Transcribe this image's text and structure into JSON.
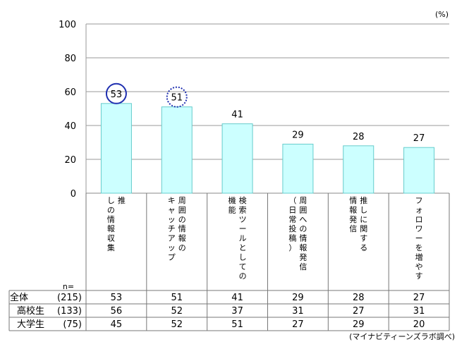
{
  "chart_data": {
    "type": "bar",
    "unit_label": "(%)",
    "ylim": [
      0,
      100
    ],
    "yticks": [
      0,
      20,
      40,
      60,
      80,
      100
    ],
    "grid": true,
    "bar_color": "#ccffff",
    "bar_stroke": "#66cccc",
    "highlight_solid_color": "#1f2fb0",
    "highlight_dotted_color": "#1f2fb0",
    "categories": [
      {
        "label": "推しの情報収集",
        "lines": [
          "推",
          "しの情報収集"
        ]
      },
      {
        "label": "周囲の情報のキャッチアップ",
        "lines": [
          "周囲の情報の",
          "キャッチアップ"
        ]
      },
      {
        "label": "検索ツールとしての機能",
        "lines": [
          "検索ツールとしての",
          "機能"
        ]
      },
      {
        "label": "周囲への情報発信（日常投稿）",
        "lines": [
          "周囲への情報発信",
          "（日常投稿）"
        ]
      },
      {
        "label": "推しに関する情報発信",
        "lines": [
          "推しに関する",
          "情報発信"
        ]
      },
      {
        "label": "フォロワーを増やす",
        "lines": [
          "フォロワーを増やす"
        ]
      }
    ],
    "values": [
      53,
      51,
      41,
      29,
      28,
      27
    ],
    "highlights": [
      {
        "index": 0,
        "style": "solid"
      },
      {
        "index": 1,
        "style": "dotted"
      }
    ]
  },
  "table": {
    "n_label": "n=",
    "rows": [
      {
        "label": "全体",
        "n": "(215)",
        "values": [
          "53",
          "51",
          "41",
          "29",
          "28",
          "27"
        ]
      },
      {
        "label": "高校生",
        "n": "(133)",
        "values": [
          "56",
          "52",
          "37",
          "31",
          "27",
          "31"
        ]
      },
      {
        "label": "大学生",
        "n": "(75)",
        "values": [
          "45",
          "52",
          "51",
          "27",
          "29",
          "20"
        ]
      }
    ]
  },
  "source": "(マイナビティーンズラボ調べ)"
}
